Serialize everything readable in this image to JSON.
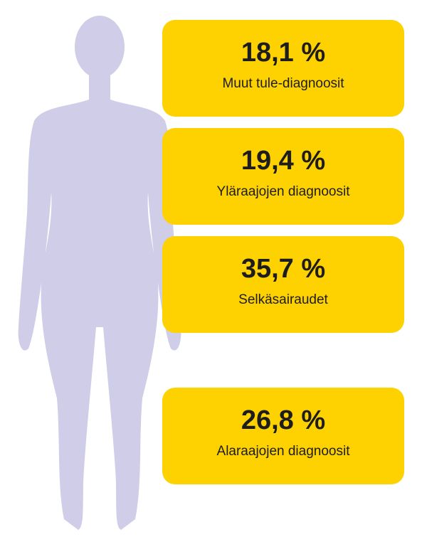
{
  "cards": [
    {
      "value": "18,1 %",
      "label": "Muut tule-diagnoosit"
    },
    {
      "value": "19,4 %",
      "label": "Yläraajojen diagnoosit"
    },
    {
      "value": "35,7 %",
      "label": "Selkäsairaudet"
    },
    {
      "value": "26,8 %",
      "label": "Alaraajojen diagnoosit"
    }
  ]
}
